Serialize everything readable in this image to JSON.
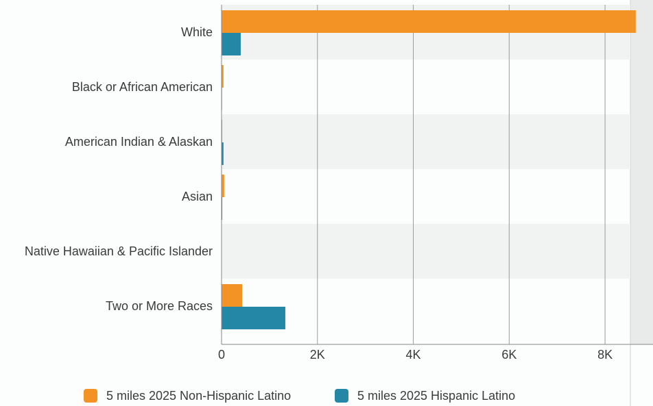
{
  "chart_data": {
    "type": "hbar",
    "categories": [
      "White",
      "Black or African American",
      "American Indian & Alaskan",
      "Asian",
      "Native Hawaiian & Pacific Islander",
      "Two or More Races"
    ],
    "series": [
      {
        "name": "5 miles 2025 Non-Hispanic Latino",
        "color": "#f39325",
        "values": [
          8640,
          40,
          15,
          55,
          5,
          430
        ]
      },
      {
        "name": "5 miles 2025 Hispanic Latino",
        "color": "#2587a6",
        "values": [
          400,
          10,
          40,
          15,
          3,
          1330
        ]
      }
    ],
    "xlim": [
      0,
      9000
    ],
    "xticks": [
      0,
      {
        "value": 2000,
        "label": "2K"
      },
      {
        "value": 4000,
        "label": "4K"
      },
      {
        "value": 6000,
        "label": "6K"
      },
      {
        "value": 8000,
        "label": "8K"
      }
    ],
    "grid": true,
    "legend": "bottom"
  }
}
